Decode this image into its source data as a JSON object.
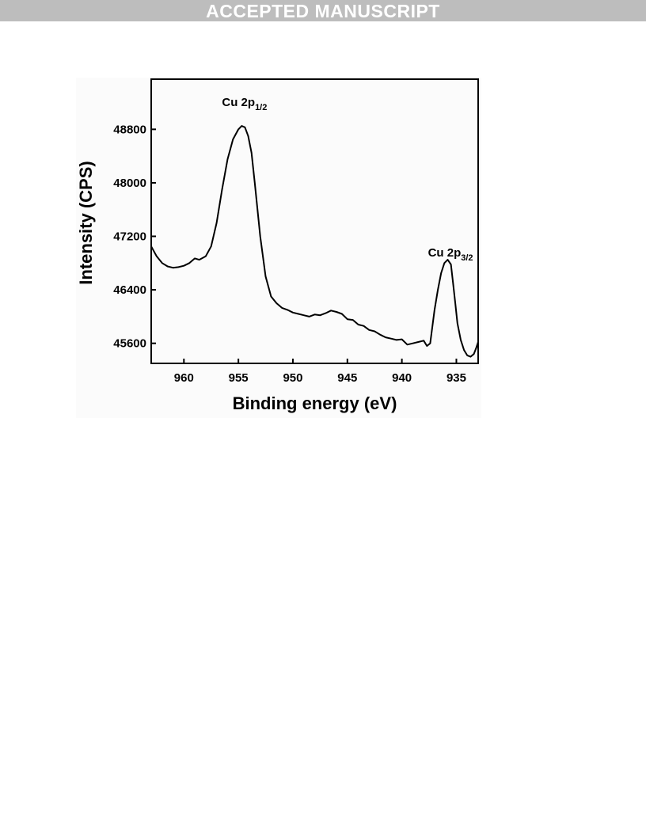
{
  "banner": {
    "text": "ACCEPTED MANUSCRIPT"
  },
  "chart_data": {
    "type": "line",
    "title": "",
    "xlabel": "Binding energy (eV)",
    "ylabel": "Intensity (CPS)",
    "xlim": [
      963,
      933
    ],
    "ylim": [
      45300,
      49550
    ],
    "x_reversed": true,
    "x_ticks": [
      960,
      955,
      950,
      945,
      940,
      935
    ],
    "y_ticks": [
      45600,
      46400,
      47200,
      48000,
      48800
    ],
    "grid": false,
    "annotations": [
      {
        "text": "Cu 2p",
        "sub": "1/2",
        "x": 954.4,
        "y": 49150
      },
      {
        "text": "Cu 2p",
        "sub": "3/2",
        "x": 935.5,
        "y": 46900
      }
    ],
    "series": [
      {
        "x": [
          963,
          962.5,
          962,
          961.5,
          961,
          960.5,
          960,
          959.5,
          959,
          958.6,
          958,
          957.5,
          957,
          956.5,
          956,
          955.5,
          955,
          954.7,
          954.4,
          954.1,
          953.8,
          953.5,
          953,
          952.5,
          952,
          951.5,
          951,
          950.5,
          950,
          949.5,
          949,
          948.5,
          948,
          947.5,
          947,
          946.5,
          946,
          945.5,
          945,
          944.5,
          944,
          943.5,
          943,
          942.5,
          942,
          941.5,
          941,
          940.5,
          940,
          939.5,
          939,
          938.5,
          938,
          937.7,
          937.4,
          937,
          936.7,
          936.4,
          936.1,
          935.8,
          935.5,
          935.3,
          935.1,
          934.9,
          934.6,
          934.3,
          934,
          933.7,
          933.4,
          933.2,
          933
        ],
        "y": [
          47050,
          46900,
          46800,
          46750,
          46730,
          46740,
          46760,
          46800,
          46870,
          46850,
          46900,
          47050,
          47400,
          47900,
          48350,
          48650,
          48800,
          48850,
          48830,
          48700,
          48450,
          48000,
          47200,
          46600,
          46300,
          46200,
          46130,
          46100,
          46060,
          46040,
          46020,
          46000,
          46030,
          46020,
          46050,
          46090,
          46070,
          46040,
          45960,
          45950,
          45880,
          45860,
          45800,
          45780,
          45730,
          45690,
          45670,
          45650,
          45660,
          45580,
          45600,
          45620,
          45640,
          45560,
          45600,
          46100,
          46400,
          46650,
          46800,
          46850,
          46780,
          46500,
          46200,
          45900,
          45650,
          45500,
          45420,
          45400,
          45440,
          45520,
          45620
        ]
      }
    ]
  }
}
